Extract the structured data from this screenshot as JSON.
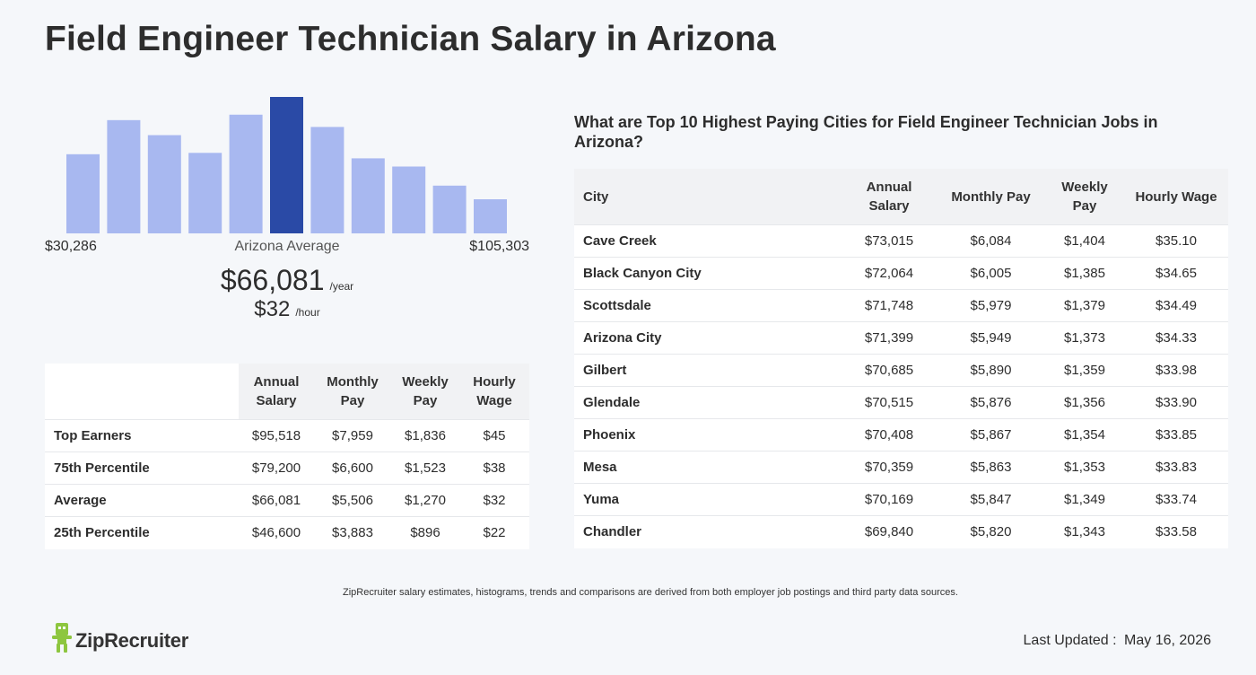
{
  "page": {
    "title": "Field Engineer Technician Salary in Arizona"
  },
  "histogram": {
    "min_label": "$30,286",
    "mid_label": "Arizona Average",
    "max_label": "$105,303",
    "bar_color": "#a8b8f0",
    "highlight_color": "#2a4aa6",
    "highlight_index": 5
  },
  "chart_data": {
    "type": "bar",
    "categories": [
      "1",
      "2",
      "3",
      "4",
      "5",
      "6",
      "7",
      "8",
      "9",
      "10",
      "11"
    ],
    "values": [
      58,
      83,
      72,
      59,
      87,
      100,
      78,
      55,
      49,
      35,
      25
    ],
    "title": "",
    "xlabel": "",
    "ylabel": "",
    "ylim": [
      0,
      100
    ]
  },
  "average": {
    "yearly_value": "$66,081",
    "yearly_unit": "/year",
    "hourly_value": "$32",
    "hourly_unit": "/hour"
  },
  "percentile_table": {
    "headers": [
      "Annual Salary",
      "Monthly Pay",
      "Weekly Pay",
      "Hourly Wage"
    ],
    "rows": [
      {
        "label": "Top Earners",
        "annual": "$95,518",
        "monthly": "$7,959",
        "weekly": "$1,836",
        "hourly": "$45"
      },
      {
        "label": "75th Percentile",
        "annual": "$79,200",
        "monthly": "$6,600",
        "weekly": "$1,523",
        "hourly": "$38"
      },
      {
        "label": "Average",
        "annual": "$66,081",
        "monthly": "$5,506",
        "weekly": "$1,270",
        "hourly": "$32"
      },
      {
        "label": "25th Percentile",
        "annual": "$46,600",
        "monthly": "$3,883",
        "weekly": "$896",
        "hourly": "$22"
      }
    ]
  },
  "cities": {
    "title": "What are Top 10 Highest Paying Cities for Field Engineer Technician Jobs in Arizona?",
    "headers": [
      "City",
      "Annual Salary",
      "Monthly Pay",
      "Weekly Pay",
      "Hourly Wage"
    ],
    "rows": [
      {
        "city": "Cave Creek",
        "annual": "$73,015",
        "monthly": "$6,084",
        "weekly": "$1,404",
        "hourly": "$35.10"
      },
      {
        "city": "Black Canyon City",
        "annual": "$72,064",
        "monthly": "$6,005",
        "weekly": "$1,385",
        "hourly": "$34.65"
      },
      {
        "city": "Scottsdale",
        "annual": "$71,748",
        "monthly": "$5,979",
        "weekly": "$1,379",
        "hourly": "$34.49"
      },
      {
        "city": "Arizona City",
        "annual": "$71,399",
        "monthly": "$5,949",
        "weekly": "$1,373",
        "hourly": "$34.33"
      },
      {
        "city": "Gilbert",
        "annual": "$70,685",
        "monthly": "$5,890",
        "weekly": "$1,359",
        "hourly": "$33.98"
      },
      {
        "city": "Glendale",
        "annual": "$70,515",
        "monthly": "$5,876",
        "weekly": "$1,356",
        "hourly": "$33.90"
      },
      {
        "city": "Phoenix",
        "annual": "$70,408",
        "monthly": "$5,867",
        "weekly": "$1,354",
        "hourly": "$33.85"
      },
      {
        "city": "Mesa",
        "annual": "$70,359",
        "monthly": "$5,863",
        "weekly": "$1,353",
        "hourly": "$33.83"
      },
      {
        "city": "Yuma",
        "annual": "$70,169",
        "monthly": "$5,847",
        "weekly": "$1,349",
        "hourly": "$33.74"
      },
      {
        "city": "Chandler",
        "annual": "$69,840",
        "monthly": "$5,820",
        "weekly": "$1,343",
        "hourly": "$33.58"
      }
    ]
  },
  "footer": {
    "footnote": "ZipRecruiter salary estimates, histograms, trends and comparisons are derived from both employer job postings and third party data sources.",
    "logo_text": "ZipRecruiter",
    "logo_icon": "ziprecruiter-mascot-icon",
    "logo_color": "#8dc63f",
    "updated_label": "Last Updated :",
    "updated_date": "May 16, 2026"
  }
}
